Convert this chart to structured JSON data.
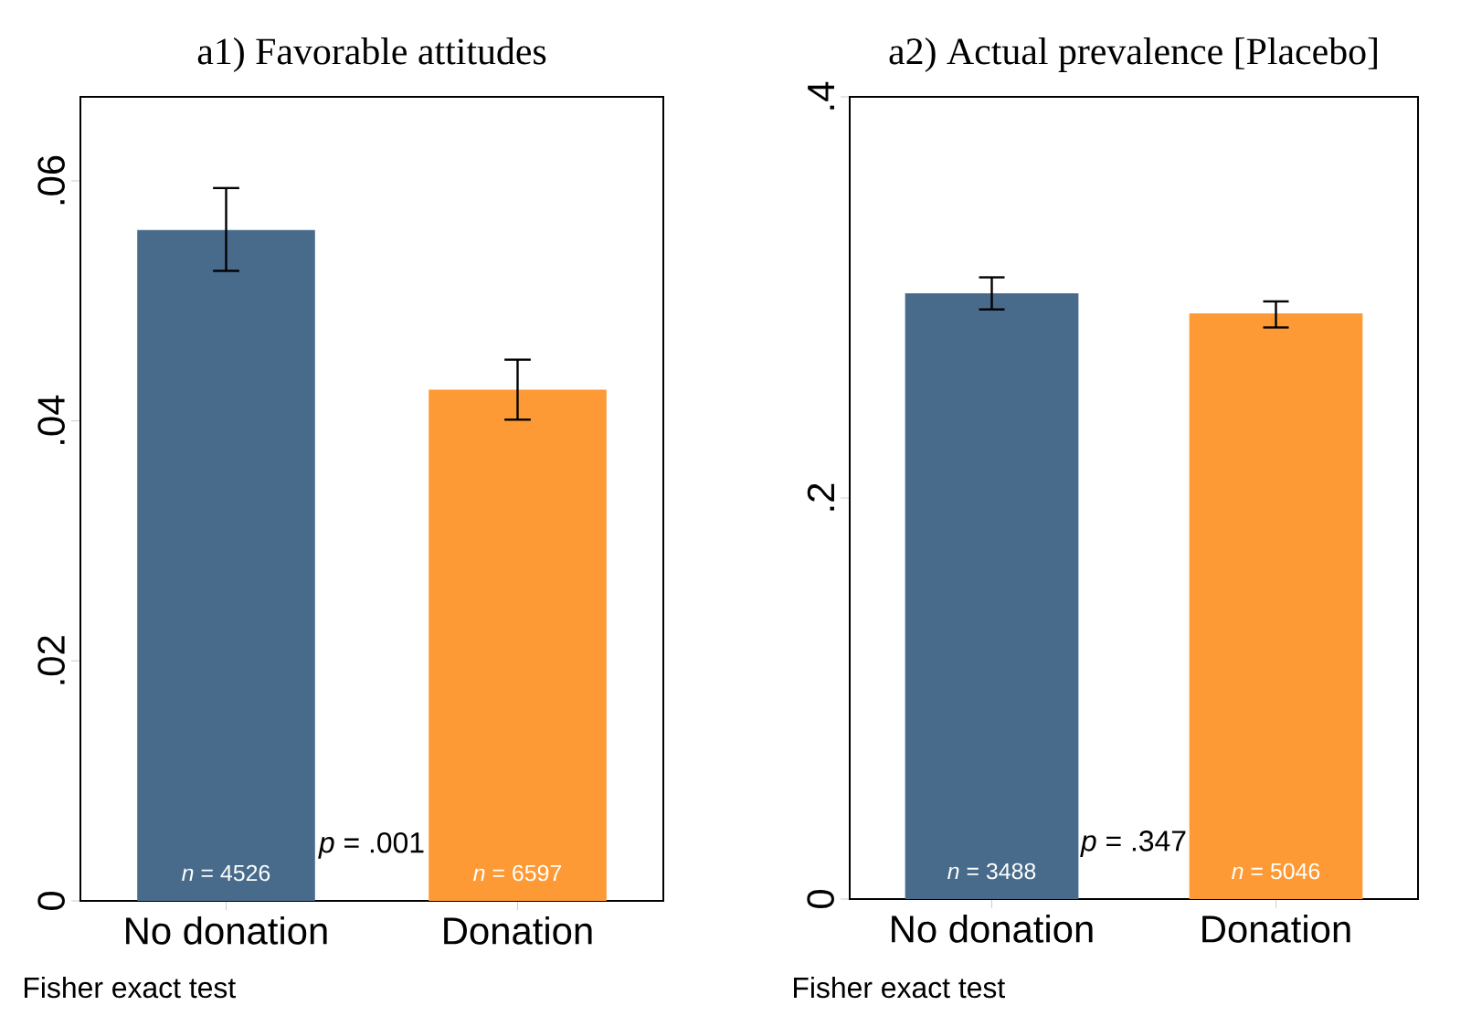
{
  "chart_data": [
    {
      "type": "bar",
      "title": "a1) Favorable attitudes",
      "categories": [
        "No donation",
        "Donation"
      ],
      "values": [
        0.0559,
        0.0426
      ],
      "colors": [
        "#486b8c",
        "#fe9a35"
      ],
      "errors": [
        [
          0.0525,
          0.0594
        ],
        [
          0.0401,
          0.0451
        ]
      ],
      "ylim": [
        0,
        0.067
      ],
      "yticks": [
        0,
        {
          "value": 0.02,
          "label": ".02"
        },
        {
          "value": 0.04,
          "label": ".04"
        },
        {
          "value": 0.06,
          "label": ".06"
        }
      ],
      "annotations": [
        "*n* = 4526",
        "*p* = .001",
        "*n* = 6597",
        "Fisher exact test"
      ]
    },
    {
      "type": "bar",
      "title": "a2) Actual prevalence [Placebo]",
      "categories": [
        "No donation",
        "Donation"
      ],
      "values": [
        0.302,
        0.292
      ],
      "colors": [
        "#486b8c",
        "#fe9a35"
      ],
      "errors": [
        [
          0.294,
          0.31
        ],
        [
          0.285,
          0.298
        ]
      ],
      "ylim": [
        0,
        0.4
      ],
      "yticks": [
        0,
        {
          "value": 0.2,
          "label": ".2"
        },
        {
          "value": 0.4,
          "label": ".4"
        }
      ],
      "annotations": [
        "*n* = 3488",
        "*p* = .347",
        "*n* = 5046",
        "Fisher exact test"
      ]
    }
  ]
}
